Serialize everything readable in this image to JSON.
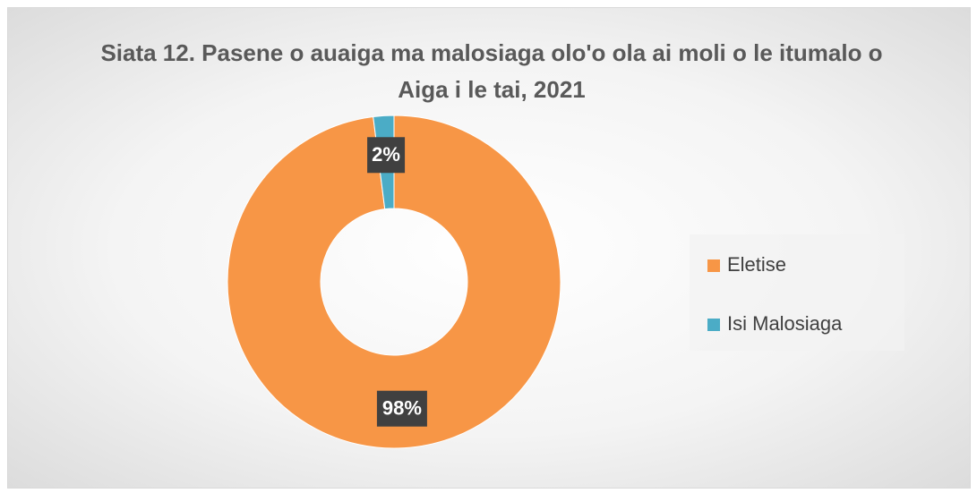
{
  "chart_data": {
    "type": "donut",
    "title": "Siata 12. Pasene o auaiga ma malosiaga olo'o ola ai moli o le itumalo o Aiga i le tai, 2021",
    "categories": [
      "Eletise",
      "Isi Malosiaga"
    ],
    "values": [
      98,
      2
    ],
    "value_labels": [
      "98%",
      "2%"
    ],
    "colors": [
      "#F79646",
      "#4BACC6"
    ],
    "legend": "right"
  }
}
